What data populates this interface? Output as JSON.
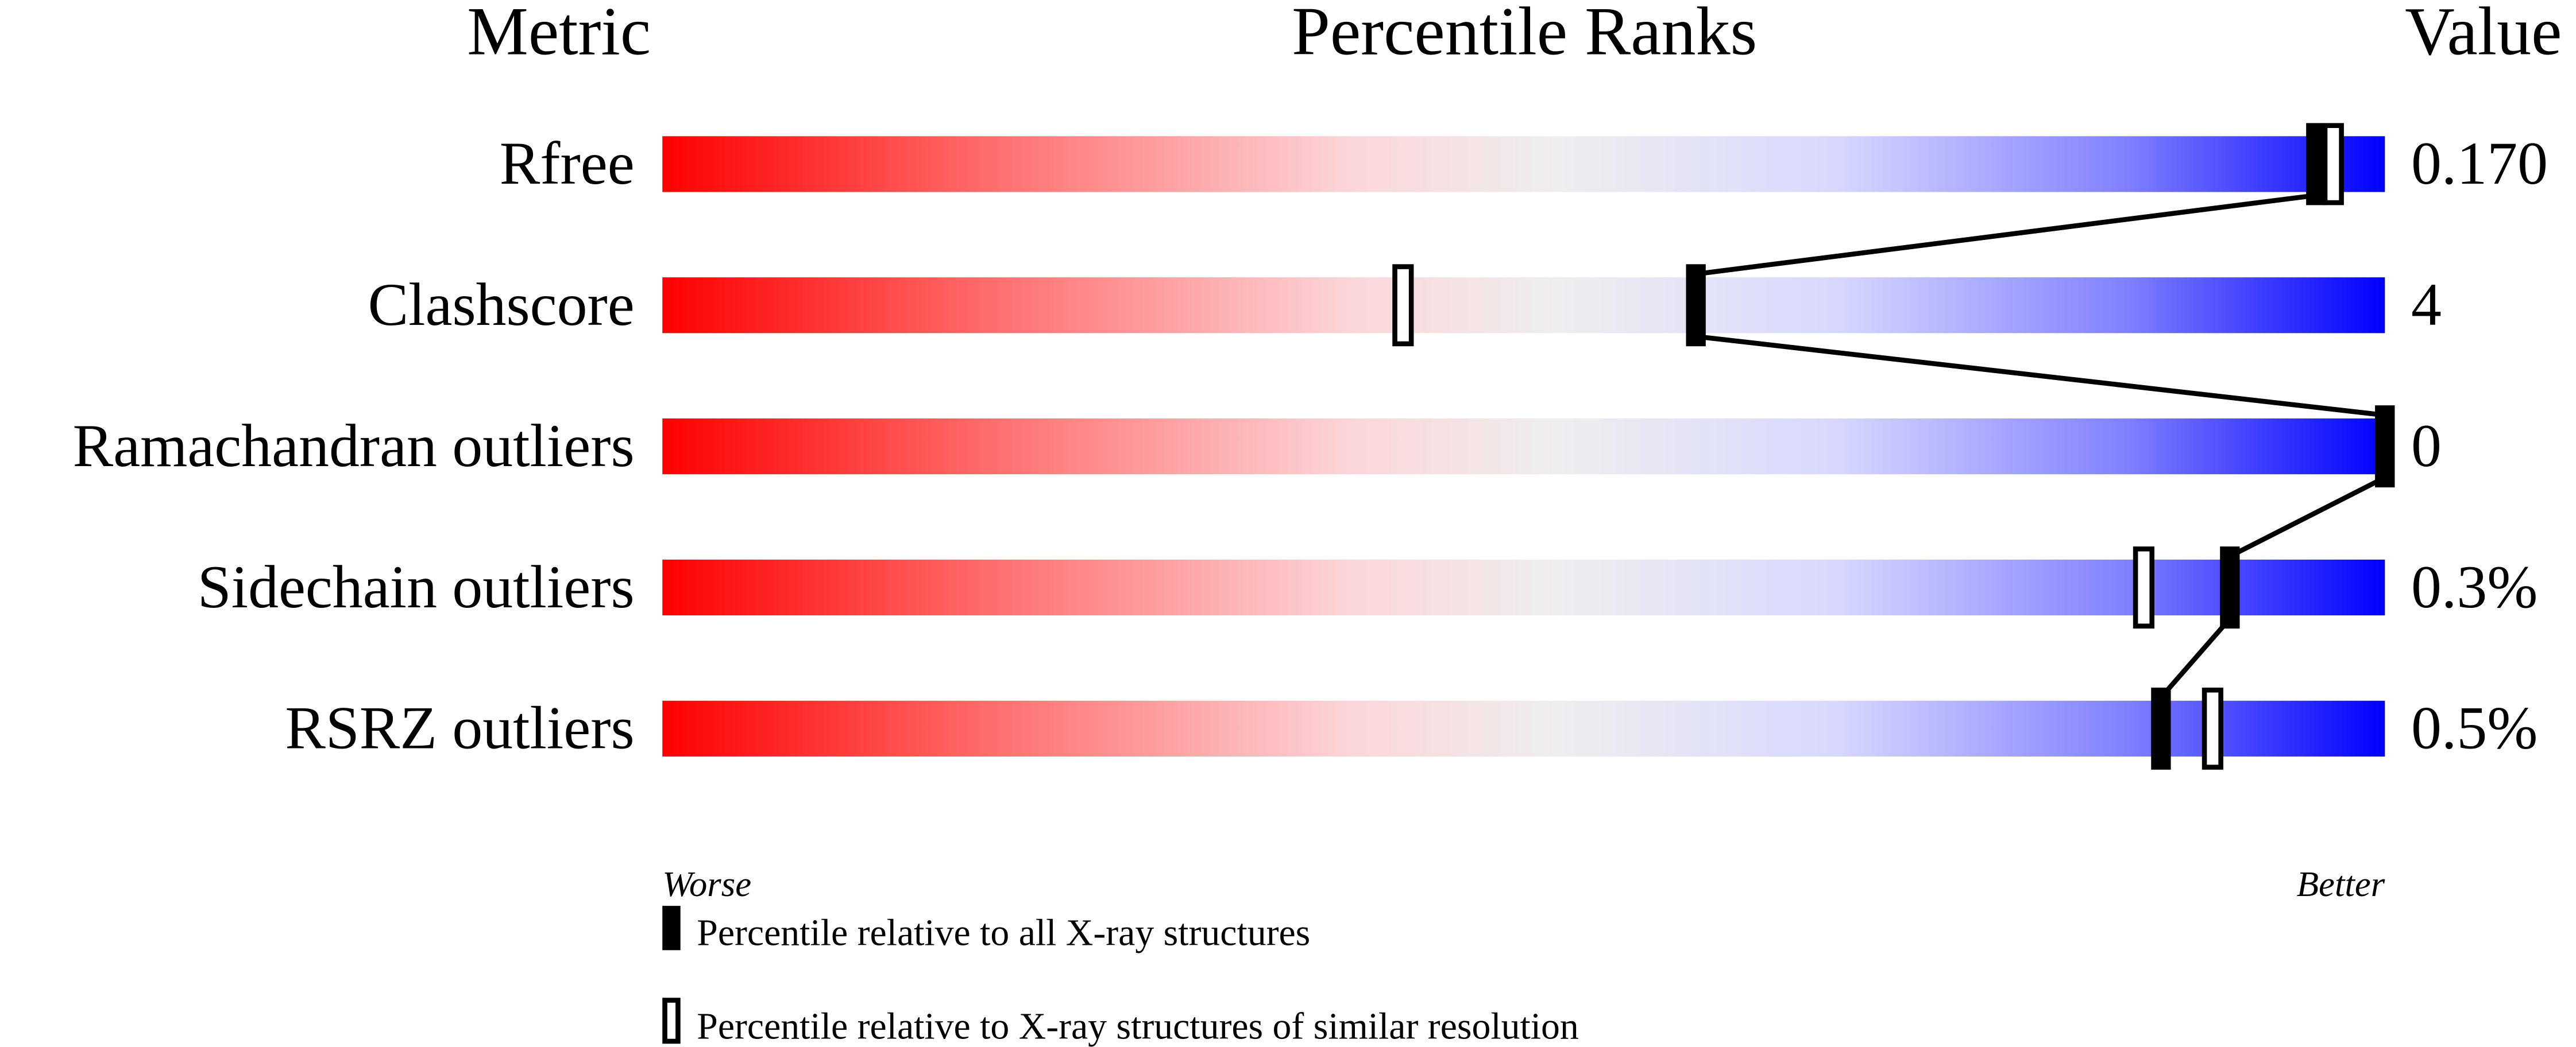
{
  "chart_data": {
    "type": "percentile-slider",
    "headers": {
      "metric": "Metric",
      "ranks": "Percentile Ranks",
      "value": "Value"
    },
    "axis": {
      "min_label": "Worse",
      "max_label": "Better",
      "range": [
        0,
        100
      ]
    },
    "gradient_colors": [
      "#ff0000",
      "#ff7272",
      "#fbd6d9",
      "#eeeeee",
      "#d8d8ff",
      "#8080ff",
      "#0000ff"
    ],
    "rows": [
      {
        "metric": "Rfree",
        "value": "0.170",
        "percentile_all": 96,
        "percentile_similar": 97
      },
      {
        "metric": "Clashscore",
        "value": "4",
        "percentile_all": 60,
        "percentile_similar": 43
      },
      {
        "metric": "Ramachandran outliers",
        "value": "0",
        "percentile_all": 100,
        "percentile_similar": 100
      },
      {
        "metric": "Sidechain outliers",
        "value": "0.3%",
        "percentile_all": 91,
        "percentile_similar": 86
      },
      {
        "metric": "RSRZ outliers",
        "value": "0.5%",
        "percentile_all": 87,
        "percentile_similar": 90
      }
    ],
    "legend": {
      "all": "Percentile relative to all X-ray structures",
      "similar": "Percentile relative to X-ray structures of similar resolution"
    }
  }
}
